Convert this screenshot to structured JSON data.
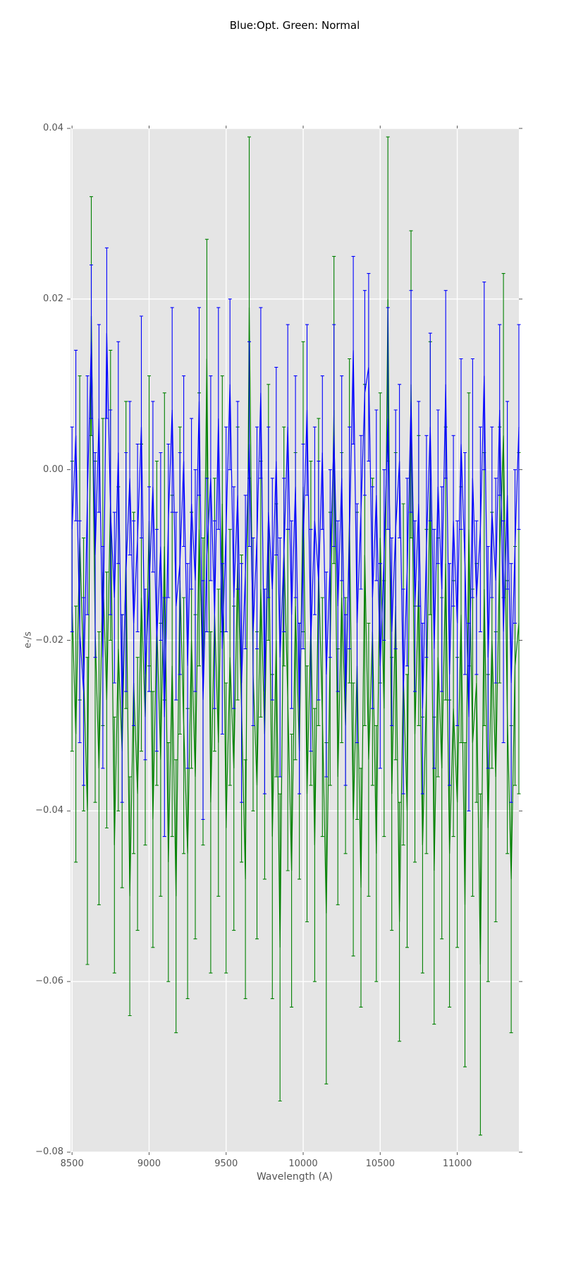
{
  "colors": {
    "blue_series": "#0000ff",
    "green_series": "#008000",
    "plot_background": "#e5e5e5",
    "grid": "#ffffff",
    "tick_mark": "#555555",
    "tick_text": "#555555",
    "axis_label_text": "#555555",
    "title_text": "#000000"
  },
  "chart_data": {
    "type": "line",
    "title": "Blue:Opt. Green: Normal",
    "xlabel": "Wavelength (A)",
    "ylabel": "e-/s",
    "legend_position": "none",
    "grid": true,
    "style": "errorbar lines, gray axes background, white gridlines, outward ticks on all four sides",
    "xlim": [
      8490,
      11400
    ],
    "ylim": [
      -0.08,
      0.04
    ],
    "x_ticks": [
      8500,
      9000,
      9500,
      10000,
      10500,
      11000
    ],
    "x_tick_labels": [
      "8500",
      "9000",
      "9500",
      "10000",
      "10500",
      "11000"
    ],
    "y_ticks": [
      0.04,
      0.02,
      0.0,
      -0.02,
      -0.04,
      -0.06,
      -0.08
    ],
    "y_tick_labels": [
      "0.04",
      "0.02",
      "0.00",
      "−0.02",
      "−0.04",
      "−0.06",
      "−0.08"
    ],
    "x_start": 8500,
    "x_step": 25,
    "n_points": 117,
    "series": [
      {
        "name": "Normal",
        "color": "#008000",
        "y": [
          -0.016,
          -0.031,
          -0.008,
          -0.024,
          -0.04,
          0.018,
          -0.019,
          -0.035,
          -0.012,
          -0.027,
          -0.003,
          -0.044,
          -0.021,
          -0.033,
          -0.01,
          -0.05,
          -0.025,
          -0.038,
          -0.015,
          -0.029,
          -0.006,
          -0.041,
          -0.018,
          -0.034,
          -0.009,
          -0.046,
          -0.023,
          -0.05,
          -0.013,
          -0.03,
          -0.045,
          -0.02,
          -0.036,
          -0.007,
          -0.026,
          0.013,
          -0.039,
          -0.017,
          -0.032,
          -0.004,
          -0.042,
          -0.022,
          -0.035,
          -0.011,
          -0.028,
          -0.048,
          0.019,
          -0.024,
          -0.037,
          -0.014,
          -0.031,
          -0.005,
          -0.043,
          -0.02,
          -0.056,
          -0.009,
          -0.027,
          -0.047,
          -0.016,
          -0.033,
          -0.002,
          -0.038,
          -0.018,
          -0.044,
          -0.012,
          -0.029,
          -0.052,
          -0.021,
          0.007,
          -0.036,
          -0.015,
          -0.03,
          -0.006,
          -0.041,
          -0.023,
          -0.049,
          -0.01,
          -0.034,
          -0.019,
          -0.045,
          -0.008,
          -0.028,
          0.02,
          -0.038,
          -0.016,
          -0.053,
          -0.024,
          -0.04,
          0.01,
          -0.031,
          -0.013,
          -0.044,
          -0.026,
          -0.001,
          -0.047,
          -0.022,
          -0.035,
          -0.011,
          -0.045,
          -0.028,
          -0.039,
          -0.017,
          -0.051,
          -0.007,
          -0.032,
          -0.025,
          -0.058,
          -0.014,
          -0.042,
          -0.02,
          -0.036,
          -0.01,
          0.004,
          -0.029,
          -0.048,
          -0.023,
          -0.018
        ],
        "yerr": [
          0.017,
          0.015,
          0.019,
          0.016,
          0.018,
          0.014,
          0.02,
          0.016,
          0.018,
          0.015,
          0.017,
          0.015,
          0.019,
          0.016,
          0.018,
          0.014,
          0.02,
          0.016,
          0.018,
          0.015,
          0.017,
          0.015,
          0.019,
          0.016,
          0.018,
          0.014,
          0.02,
          0.016,
          0.018,
          0.015,
          0.017,
          0.015,
          0.019,
          0.016,
          0.018,
          0.014,
          0.02,
          0.016,
          0.018,
          0.015,
          0.017,
          0.015,
          0.019,
          0.016,
          0.018,
          0.014,
          0.02,
          0.016,
          0.018,
          0.015,
          0.017,
          0.015,
          0.019,
          0.016,
          0.018,
          0.014,
          0.02,
          0.016,
          0.018,
          0.015,
          0.017,
          0.015,
          0.019,
          0.016,
          0.018,
          0.014,
          0.02,
          0.016,
          0.018,
          0.015,
          0.017,
          0.015,
          0.019,
          0.016,
          0.018,
          0.014,
          0.02,
          0.016,
          0.018,
          0.015,
          0.017,
          0.015,
          0.019,
          0.016,
          0.018,
          0.014,
          0.02,
          0.016,
          0.018,
          0.015,
          0.017,
          0.015,
          0.019,
          0.016,
          0.018,
          0.014,
          0.02,
          0.016,
          0.018,
          0.015,
          0.017,
          0.015,
          0.019,
          0.016,
          0.018,
          0.014,
          0.02,
          0.016,
          0.018,
          0.015,
          0.017,
          0.015,
          0.019,
          0.016,
          0.018,
          0.014,
          0.02
        ]
      },
      {
        "name": "Opt",
        "color": "#0000ff",
        "y": [
          -0.007,
          0.004,
          -0.019,
          -0.026,
          -0.003,
          0.015,
          -0.01,
          0.006,
          -0.022,
          0.016,
          -0.005,
          -0.015,
          0.002,
          -0.028,
          -0.012,
          -0.001,
          -0.018,
          -0.008,
          0.005,
          -0.024,
          -0.014,
          -0.002,
          -0.02,
          -0.009,
          -0.029,
          -0.006,
          0.007,
          -0.016,
          -0.011,
          0.001,
          -0.023,
          -0.004,
          -0.013,
          0.008,
          -0.027,
          -0.01,
          -0.001,
          -0.017,
          0.006,
          -0.021,
          -0.007,
          0.01,
          -0.015,
          -0.003,
          -0.025,
          -0.012,
          0.003,
          -0.019,
          -0.008,
          0.009,
          -0.026,
          -0.005,
          -0.014,
          0.001,
          -0.022,
          -0.01,
          0.005,
          -0.017,
          -0.002,
          -0.028,
          -0.009,
          0.007,
          -0.02,
          -0.006,
          -0.013,
          0.002,
          -0.024,
          -0.011,
          0.004,
          -0.016,
          -0.001,
          -0.027,
          -0.008,
          0.014,
          -0.018,
          -0.005,
          0.009,
          0.012,
          -0.015,
          -0.003,
          -0.023,
          -0.01,
          0.006,
          -0.019,
          -0.007,
          0.001,
          -0.026,
          -0.012,
          0.008,
          -0.016,
          -0.004,
          -0.028,
          -0.009,
          0.005,
          -0.021,
          -0.002,
          -0.014,
          0.01,
          -0.024,
          -0.006,
          -0.018,
          0.003,
          -0.011,
          -0.029,
          -0.001,
          -0.015,
          -0.007,
          0.011,
          -0.022,
          -0.005,
          -0.013,
          0.007,
          -0.019,
          -0.003,
          -0.025,
          -0.009,
          0.005
        ],
        "yerr": [
          0.012,
          0.01,
          0.013,
          0.011,
          0.014,
          0.009,
          0.012,
          0.011,
          0.013,
          0.01,
          0.012,
          0.01,
          0.013,
          0.011,
          0.014,
          0.009,
          0.012,
          0.011,
          0.013,
          0.01,
          0.012,
          0.01,
          0.013,
          0.011,
          0.014,
          0.009,
          0.012,
          0.011,
          0.013,
          0.01,
          0.012,
          0.01,
          0.013,
          0.011,
          0.014,
          0.009,
          0.012,
          0.011,
          0.013,
          0.01,
          0.012,
          0.01,
          0.013,
          0.011,
          0.014,
          0.009,
          0.012,
          0.011,
          0.013,
          0.01,
          0.012,
          0.01,
          0.013,
          0.011,
          0.014,
          0.009,
          0.012,
          0.011,
          0.013,
          0.01,
          0.012,
          0.01,
          0.013,
          0.011,
          0.014,
          0.009,
          0.012,
          0.011,
          0.013,
          0.01,
          0.012,
          0.01,
          0.013,
          0.011,
          0.014,
          0.009,
          0.012,
          0.011,
          0.013,
          0.01,
          0.012,
          0.01,
          0.013,
          0.011,
          0.014,
          0.009,
          0.012,
          0.011,
          0.013,
          0.01,
          0.012,
          0.01,
          0.013,
          0.011,
          0.014,
          0.009,
          0.012,
          0.011,
          0.013,
          0.01,
          0.012,
          0.01,
          0.013,
          0.011,
          0.014,
          0.009,
          0.012,
          0.011,
          0.013,
          0.01,
          0.012,
          0.01,
          0.013,
          0.011,
          0.014,
          0.009,
          0.012
        ]
      }
    ]
  }
}
